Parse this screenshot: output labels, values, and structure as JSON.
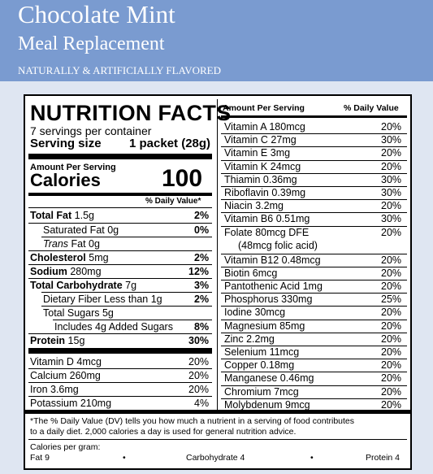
{
  "banner": {
    "title": "Chocolate Mint",
    "subtitle": "Meal Replacement",
    "flavor_note": "NATURALLY & ARTIFICIALLY FLAVORED",
    "background_color": "#7a9bd0"
  },
  "facts": {
    "heading": "NUTRITION FACTS",
    "servings": "7 servings per container",
    "serving_size_label": "Serving size",
    "serving_size_value": "1 packet (28g)",
    "amount_per_serving": "Amount Per Serving",
    "calories_label": "Calories",
    "calories_value": "100",
    "dv_header": "% Daily Value*",
    "nutrients": [
      {
        "name": "Total Fat",
        "amount": "1.5g",
        "dv": "2%"
      },
      {
        "name": "Saturated Fat",
        "amount": "0g",
        "dv": "0%"
      },
      {
        "name": "Trans",
        "suffix": "Fat 0g",
        "dv": ""
      },
      {
        "name": "Cholesterol",
        "amount": "5mg",
        "dv": "2%"
      },
      {
        "name": "Sodium",
        "amount": "280mg",
        "dv": "12%"
      },
      {
        "name": "Total Carbohydrate",
        "amount": "7g",
        "dv": "3%"
      },
      {
        "name": "Dietary Fiber Less than 1g",
        "dv": "2%"
      },
      {
        "name": "Total Sugars 5g",
        "dv": ""
      },
      {
        "name": "Includes 4g Added Sugars",
        "dv": "8%"
      },
      {
        "name": "Protein",
        "amount": "15g",
        "dv": "30%"
      }
    ],
    "minerals_left": [
      {
        "name": "Vitamin D 4mcg",
        "dv": "20%"
      },
      {
        "name": "Calcium 260mg",
        "dv": "20%"
      },
      {
        "name": "Iron 3.6mg",
        "dv": "20%"
      },
      {
        "name": "Potassium 210mg",
        "dv": "4%"
      }
    ],
    "right_header_label": "Amount Per Serving",
    "right_header_dv": "% Daily Value",
    "vitamins_right": [
      {
        "name": "Vitamin A  180mcg",
        "dv": "20%"
      },
      {
        "name": "Vitamin C  27mg",
        "dv": "30%"
      },
      {
        "name": "Vitamin E  3mg",
        "dv": "20%"
      },
      {
        "name": "Vitamin K  24mcg",
        "dv": "20%"
      },
      {
        "name": "Thiamin  0.36mg",
        "dv": "30%"
      },
      {
        "name": "Riboflavin  0.39mg",
        "dv": "30%"
      },
      {
        "name": "Niacin  3.2mg",
        "dv": "20%"
      },
      {
        "name": "Vitamin B6  0.51mg",
        "dv": "30%"
      },
      {
        "name": "Folate  80mcg DFE",
        "name_line2": "(48mcg folic acid)",
        "dv": "20%"
      },
      {
        "name": "Vitamin B12  0.48mcg",
        "dv": "20%"
      },
      {
        "name": "Biotin  6mcg",
        "dv": "20%"
      },
      {
        "name": "Pantothenic Acid  1mg",
        "dv": "20%"
      },
      {
        "name": "Phosphorus  330mg",
        "dv": "25%"
      },
      {
        "name": "Iodine  30mcg",
        "dv": "20%"
      },
      {
        "name": "Magnesium  85mg",
        "dv": "20%"
      },
      {
        "name": "Zinc  2.2mg",
        "dv": "20%"
      },
      {
        "name": "Selenium  11mcg",
        "dv": "20%"
      },
      {
        "name": "Copper  0.18mg",
        "dv": "20%"
      },
      {
        "name": "Manganese  0.46mg",
        "dv": "20%"
      },
      {
        "name": "Chromium  7mcg",
        "dv": "20%"
      },
      {
        "name": "Molybdenum  9mcg",
        "dv": "20%"
      }
    ],
    "footnote_line1": "*The % Daily Value (DV) tells you how much a nutrient in a serving of food contributes",
    "footnote_line2": "to a daily diet. 2,000 calories a day is used for general nutrition advice.",
    "cal_per_gram_label": "Calories per gram:",
    "cal_fat": "Fat 9",
    "cal_carb": "Carbohydrate 4",
    "cal_protein": "Protein 4",
    "bullet": "•"
  }
}
